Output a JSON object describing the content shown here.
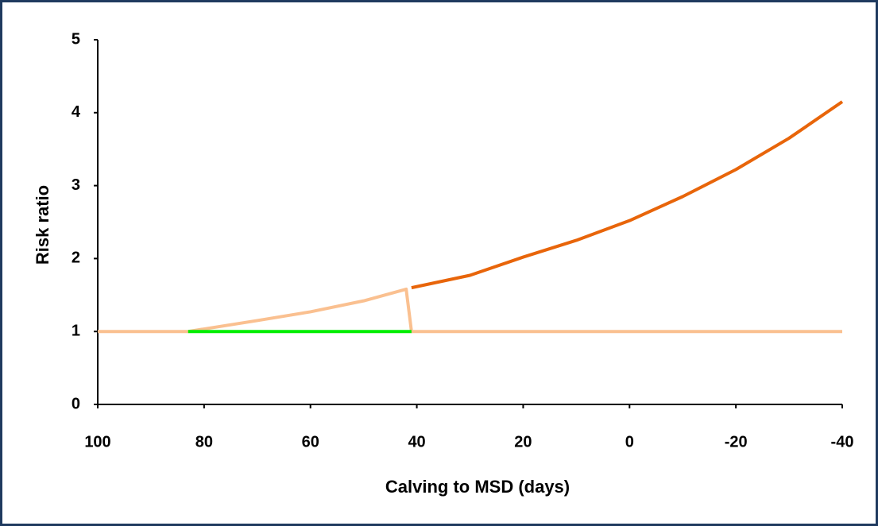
{
  "chart_data": {
    "type": "line",
    "x_label": "Calving to MSD (days)",
    "y_label": "Risk ratio",
    "xlim": [
      100,
      -40
    ],
    "xticks": [
      100,
      80,
      60,
      40,
      20,
      0,
      -20,
      -40
    ],
    "ylim": [
      0,
      5
    ],
    "yticks": [
      0,
      1,
      2,
      3,
      4,
      5
    ],
    "series": [
      {
        "color": "#fac090",
        "x": [
          100,
          83,
          70,
          60,
          50,
          42,
          41,
          -40
        ],
        "values": [
          1,
          1,
          1.15,
          1.27,
          1.42,
          1.58,
          1,
          1
        ]
      },
      {
        "color": "#00ee00",
        "x": [
          83,
          41
        ],
        "values": [
          1,
          1
        ]
      },
      {
        "color": "#e8650a",
        "x": [
          41,
          30,
          20,
          10,
          0,
          -10,
          -20,
          -30,
          -40
        ],
        "values": [
          1.6,
          1.77,
          2.02,
          2.25,
          2.52,
          2.85,
          3.22,
          3.65,
          4.15
        ]
      }
    ]
  }
}
